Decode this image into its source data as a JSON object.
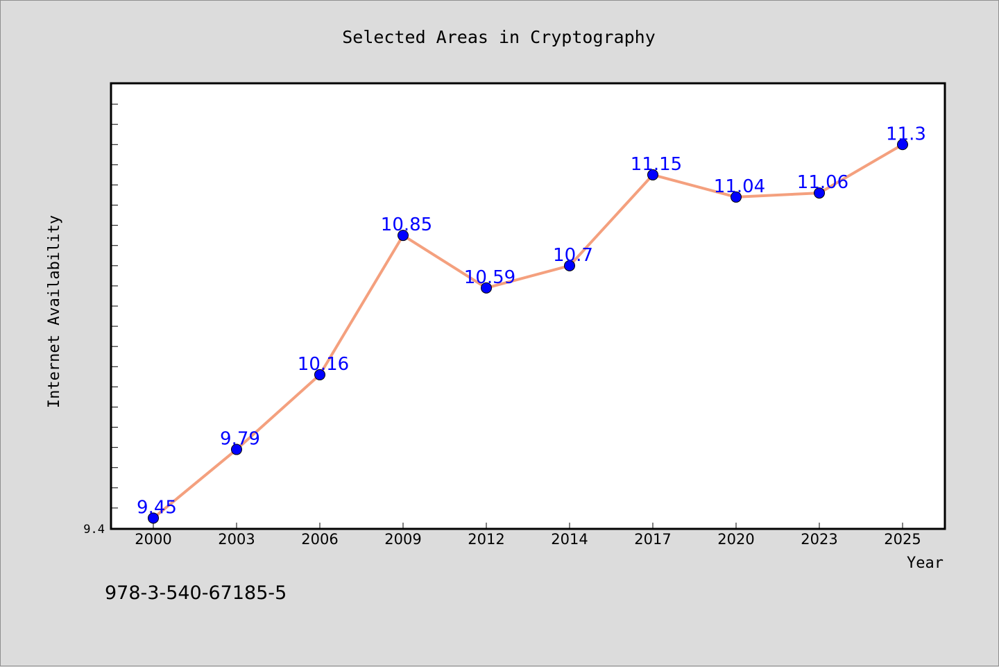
{
  "chart_data": {
    "type": "line",
    "title": "Selected Areas in Cryptography",
    "xlabel": "Year",
    "ylabel": "Internet Availability",
    "categories": [
      "2000",
      "2003",
      "2006",
      "2009",
      "2012",
      "2014",
      "2017",
      "2020",
      "2023",
      "2025"
    ],
    "series": [
      {
        "values": [
          9.45,
          9.79,
          10.16,
          10.85,
          10.59,
          10.7,
          11.15,
          11.04,
          11.06,
          11.3
        ]
      }
    ],
    "data_labels": [
      "9.45",
      "9.79",
      "10.16",
      "10.85",
      "10.59",
      "10.7",
      "11.15",
      "11.04",
      "11.06",
      "11.3"
    ],
    "y_tick_label": "9.4",
    "ylim": [
      9.4,
      11.6
    ],
    "grid": false,
    "legend": "none",
    "colors": {
      "line": "#f4a07e",
      "marker": "#0000ff",
      "data_label": "#0000ff",
      "background": "#dcdcdc",
      "plot_background": "#ffffff"
    }
  },
  "footer_text": "978-3-540-67185-5"
}
